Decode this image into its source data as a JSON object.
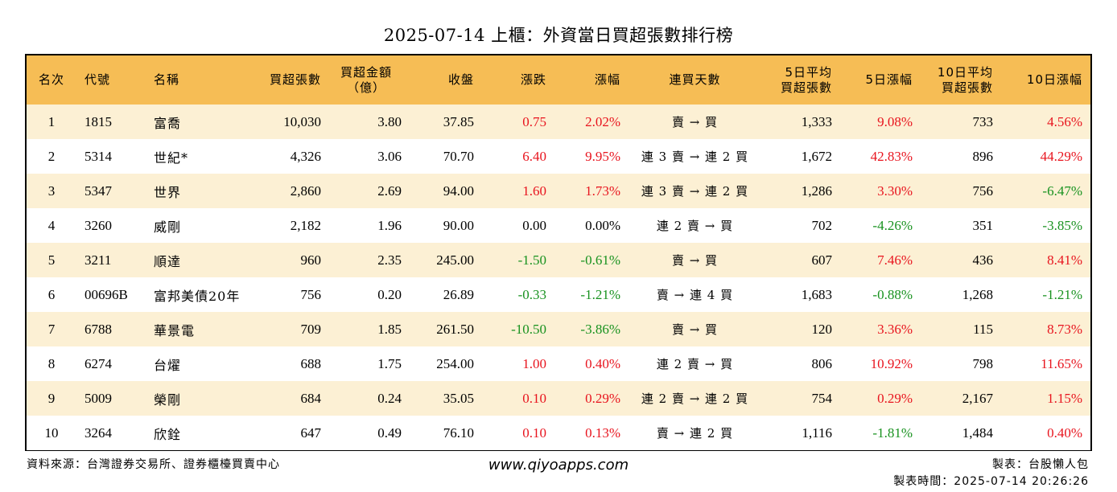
{
  "title": "2025-07-14 上櫃：外資當日買超張數排行榜",
  "columns": [
    {
      "key": "rank",
      "label": "名次"
    },
    {
      "key": "code",
      "label": "代號"
    },
    {
      "key": "name",
      "label": "名稱"
    },
    {
      "key": "net_buy_lots",
      "label": "買超張數"
    },
    {
      "key": "net_buy_amount",
      "label": "買超金額\n（億）"
    },
    {
      "key": "close",
      "label": "收盤"
    },
    {
      "key": "change",
      "label": "漲跌"
    },
    {
      "key": "change_pct",
      "label": "漲幅"
    },
    {
      "key": "buy_streak",
      "label": "連買天數"
    },
    {
      "key": "avg5_net_buy",
      "label": "5日平均\n買超張數"
    },
    {
      "key": "pct5",
      "label": "5日漲幅"
    },
    {
      "key": "avg10_net_buy",
      "label": "10日平均\n買超張數"
    },
    {
      "key": "pct10",
      "label": "10日漲幅"
    }
  ],
  "rows": [
    {
      "rank": "1",
      "code": "1815",
      "name": "富喬",
      "net_buy_lots": "10,030",
      "net_buy_amount": "3.80",
      "close": "37.85",
      "change": "0.75",
      "change_pct": "2.02%",
      "buy_streak": "賣 → 買",
      "avg5_net_buy": "1,333",
      "pct5": "9.08%",
      "avg10_net_buy": "733",
      "pct10": "4.56%"
    },
    {
      "rank": "2",
      "code": "5314",
      "name": "世紀*",
      "net_buy_lots": "4,326",
      "net_buy_amount": "3.06",
      "close": "70.70",
      "change": "6.40",
      "change_pct": "9.95%",
      "buy_streak": "連 3 賣 → 連 2 買",
      "avg5_net_buy": "1,672",
      "pct5": "42.83%",
      "avg10_net_buy": "896",
      "pct10": "44.29%"
    },
    {
      "rank": "3",
      "code": "5347",
      "name": "世界",
      "net_buy_lots": "2,860",
      "net_buy_amount": "2.69",
      "close": "94.00",
      "change": "1.60",
      "change_pct": "1.73%",
      "buy_streak": "連 3 賣 → 連 2 買",
      "avg5_net_buy": "1,286",
      "pct5": "3.30%",
      "avg10_net_buy": "756",
      "pct10": "-6.47%"
    },
    {
      "rank": "4",
      "code": "3260",
      "name": "威剛",
      "net_buy_lots": "2,182",
      "net_buy_amount": "1.96",
      "close": "90.00",
      "change": "0.00",
      "change_pct": "0.00%",
      "buy_streak": "連 2 賣 → 買",
      "avg5_net_buy": "702",
      "pct5": "-4.26%",
      "avg10_net_buy": "351",
      "pct10": "-3.85%"
    },
    {
      "rank": "5",
      "code": "3211",
      "name": "順達",
      "net_buy_lots": "960",
      "net_buy_amount": "2.35",
      "close": "245.00",
      "change": "-1.50",
      "change_pct": "-0.61%",
      "buy_streak": "賣 → 買",
      "avg5_net_buy": "607",
      "pct5": "7.46%",
      "avg10_net_buy": "436",
      "pct10": "8.41%"
    },
    {
      "rank": "6",
      "code": "00696B",
      "name": "富邦美債20年",
      "net_buy_lots": "756",
      "net_buy_amount": "0.20",
      "close": "26.89",
      "change": "-0.33",
      "change_pct": "-1.21%",
      "buy_streak": "賣 → 連 4 買",
      "avg5_net_buy": "1,683",
      "pct5": "-0.88%",
      "avg10_net_buy": "1,268",
      "pct10": "-1.21%"
    },
    {
      "rank": "7",
      "code": "6788",
      "name": "華景電",
      "net_buy_lots": "709",
      "net_buy_amount": "1.85",
      "close": "261.50",
      "change": "-10.50",
      "change_pct": "-3.86%",
      "buy_streak": "賣 → 買",
      "avg5_net_buy": "120",
      "pct5": "3.36%",
      "avg10_net_buy": "115",
      "pct10": "8.73%"
    },
    {
      "rank": "8",
      "code": "6274",
      "name": "台燿",
      "net_buy_lots": "688",
      "net_buy_amount": "1.75",
      "close": "254.00",
      "change": "1.00",
      "change_pct": "0.40%",
      "buy_streak": "連 2 賣 → 買",
      "avg5_net_buy": "806",
      "pct5": "10.92%",
      "avg10_net_buy": "798",
      "pct10": "11.65%"
    },
    {
      "rank": "9",
      "code": "5009",
      "name": "榮剛",
      "net_buy_lots": "684",
      "net_buy_amount": "0.24",
      "close": "35.05",
      "change": "0.10",
      "change_pct": "0.29%",
      "buy_streak": "連 2 賣 → 連 2 買",
      "avg5_net_buy": "754",
      "pct5": "0.29%",
      "avg10_net_buy": "2,167",
      "pct10": "1.15%"
    },
    {
      "rank": "10",
      "code": "3264",
      "name": "欣銓",
      "net_buy_lots": "647",
      "net_buy_amount": "0.49",
      "close": "76.10",
      "change": "0.10",
      "change_pct": "0.13%",
      "buy_streak": "賣 → 連 2 買",
      "avg5_net_buy": "1,116",
      "pct5": "-1.81%",
      "avg10_net_buy": "1,484",
      "pct10": "0.40%"
    }
  ],
  "footer": {
    "source": "資料來源：台灣證券交易所、證券櫃檯買賣中心",
    "site": "www.qiyoapps.com",
    "maker": "製表：台股懶人包",
    "time": "製表時間：2025-07-14 20:26:26"
  },
  "colors": {
    "header_bg": "#f6bd55",
    "row_alt_bg": "#fcf0d4",
    "up": "#e8141e",
    "down": "#18921f"
  }
}
